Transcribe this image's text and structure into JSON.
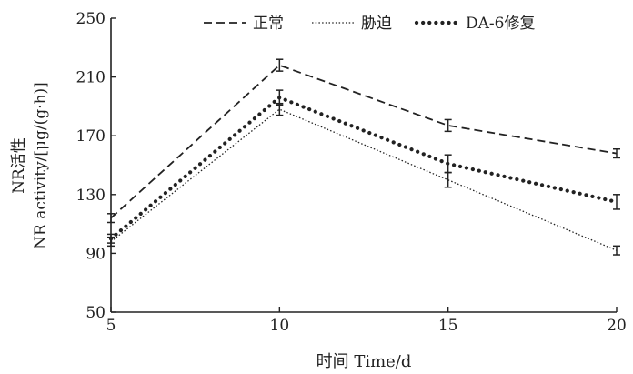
{
  "chart_data": {
    "type": "line",
    "title": "",
    "xlabel": "时间 Time/d",
    "ylabel_line1": "NR活性",
    "ylabel_line2": "NR activity/[μg/(g·h)]",
    "x": [
      5,
      10,
      15,
      20
    ],
    "x_ticks": [
      "5",
      "10",
      "15",
      "20"
    ],
    "y_ticks": [
      "50",
      "90",
      "130",
      "170",
      "210",
      "250"
    ],
    "xlim": [
      5,
      20
    ],
    "ylim": [
      50,
      250
    ],
    "grid": false,
    "legend_position": "top",
    "series": [
      {
        "name": "正常",
        "style": "dashed",
        "color": "#222222",
        "values": [
          114,
          218,
          177,
          158
        ],
        "errors": [
          3,
          4,
          4,
          3
        ]
      },
      {
        "name": "胁迫",
        "style": "dotted-thin",
        "color": "#222222",
        "values": [
          98,
          188,
          140,
          92
        ],
        "errors": [
          3,
          4,
          5,
          3
        ]
      },
      {
        "name": "DA-6修复",
        "style": "dotted-thick",
        "color": "#222222",
        "values": [
          100,
          196,
          151,
          125
        ],
        "errors": [
          3,
          5,
          6,
          5
        ]
      }
    ]
  }
}
